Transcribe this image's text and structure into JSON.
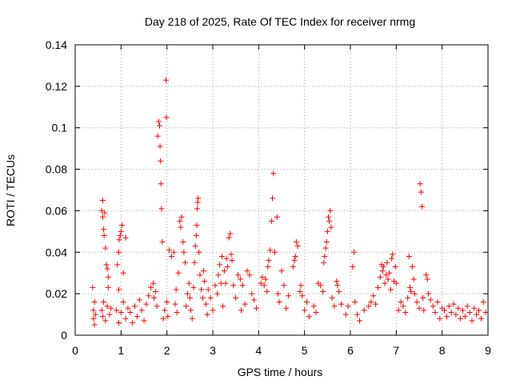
{
  "chart_data": {
    "type": "scatter",
    "title": "Day 218 of 2025, Rate Of TEC Index for receiver nrmg",
    "xlabel": "GPS time / hours",
    "ylabel": "ROTI / TECUs",
    "xlim": [
      0,
      9
    ],
    "ylim": [
      0,
      0.14
    ],
    "xticks": [
      0,
      1,
      2,
      3,
      4,
      5,
      6,
      7,
      8,
      9
    ],
    "xtick_labels": [
      "0",
      "1",
      "2",
      "3",
      "4",
      "5",
      "6",
      "7",
      "8",
      "9"
    ],
    "yticks": [
      0,
      0.02,
      0.04,
      0.06,
      0.08,
      0.1,
      0.12,
      0.14
    ],
    "ytick_labels": [
      "0",
      "0.02",
      "0.04",
      "0.06",
      "0.08",
      "0.1",
      "0.12",
      "0.14"
    ],
    "grid": true,
    "marker": "+",
    "color": "#ff0000",
    "series": [
      {
        "name": "ROTI",
        "points": [
          [
            0.38,
            0.023
          ],
          [
            0.4,
            0.012
          ],
          [
            0.4,
            0.008
          ],
          [
            0.42,
            0.016
          ],
          [
            0.42,
            0.005
          ],
          [
            0.44,
            0.01
          ],
          [
            0.58,
            0.06
          ],
          [
            0.6,
            0.065
          ],
          [
            0.6,
            0.057
          ],
          [
            0.62,
            0.051
          ],
          [
            0.63,
            0.048
          ],
          [
            0.64,
            0.059
          ],
          [
            0.66,
            0.042
          ],
          [
            0.68,
            0.034
          ],
          [
            0.7,
            0.032
          ],
          [
            0.72,
            0.028
          ],
          [
            0.72,
            0.023
          ],
          [
            0.58,
            0.012
          ],
          [
            0.6,
            0.009
          ],
          [
            0.62,
            0.016
          ],
          [
            0.66,
            0.007
          ],
          [
            0.7,
            0.014
          ],
          [
            0.75,
            0.01
          ],
          [
            0.78,
            0.013
          ],
          [
            0.92,
            0.034
          ],
          [
            0.95,
            0.04
          ],
          [
            0.96,
            0.046
          ],
          [
            0.98,
            0.048
          ],
          [
            1.0,
            0.05
          ],
          [
            1.02,
            0.053
          ],
          [
            0.95,
            0.022
          ],
          [
            1.05,
            0.03
          ],
          [
            1.1,
            0.047
          ],
          [
            0.9,
            0.012
          ],
          [
            0.95,
            0.006
          ],
          [
            1.0,
            0.011
          ],
          [
            1.05,
            0.016
          ],
          [
            1.1,
            0.008
          ],
          [
            1.15,
            0.013
          ],
          [
            1.2,
            0.011
          ],
          [
            1.25,
            0.006
          ],
          [
            1.3,
            0.014
          ],
          [
            1.35,
            0.009
          ],
          [
            1.4,
            0.017
          ],
          [
            1.45,
            0.012
          ],
          [
            1.5,
            0.007
          ],
          [
            1.55,
            0.015
          ],
          [
            1.6,
            0.019
          ],
          [
            1.65,
            0.023
          ],
          [
            1.7,
            0.025
          ],
          [
            1.72,
            0.018
          ],
          [
            1.75,
            0.021
          ],
          [
            1.78,
            0.014
          ],
          [
            1.8,
            0.096
          ],
          [
            1.82,
            0.103
          ],
          [
            1.84,
            0.101
          ],
          [
            1.85,
            0.091
          ],
          [
            1.86,
            0.084
          ],
          [
            1.87,
            0.073
          ],
          [
            1.88,
            0.061
          ],
          [
            1.9,
            0.045
          ],
          [
            1.98,
            0.123
          ],
          [
            1.99,
            0.105
          ],
          [
            1.95,
            0.012
          ],
          [
            1.92,
            0.008
          ],
          [
            2.0,
            0.016
          ],
          [
            2.02,
            0.009
          ],
          [
            2.05,
            0.041
          ],
          [
            2.1,
            0.038
          ],
          [
            2.15,
            0.04
          ],
          [
            2.18,
            0.015
          ],
          [
            2.2,
            0.022
          ],
          [
            2.22,
            0.011
          ],
          [
            2.25,
            0.03
          ],
          [
            2.28,
            0.055
          ],
          [
            2.3,
            0.052
          ],
          [
            2.32,
            0.057
          ],
          [
            2.35,
            0.045
          ],
          [
            2.37,
            0.04
          ],
          [
            2.4,
            0.035
          ],
          [
            2.42,
            0.014
          ],
          [
            2.45,
            0.02
          ],
          [
            2.48,
            0.025
          ],
          [
            2.5,
            0.018
          ],
          [
            2.52,
            0.012
          ],
          [
            2.55,
            0.008
          ],
          [
            2.58,
            0.023
          ],
          [
            2.6,
            0.035
          ],
          [
            2.62,
            0.043
          ],
          [
            2.64,
            0.048
          ],
          [
            2.65,
            0.053
          ],
          [
            2.66,
            0.061
          ],
          [
            2.67,
            0.064
          ],
          [
            2.68,
            0.066
          ],
          [
            2.7,
            0.04
          ],
          [
            2.72,
            0.029
          ],
          [
            2.75,
            0.022
          ],
          [
            2.78,
            0.018
          ],
          [
            2.8,
            0.031
          ],
          [
            2.82,
            0.026
          ],
          [
            2.85,
            0.015
          ],
          [
            2.88,
            0.01
          ],
          [
            2.9,
            0.022
          ],
          [
            2.95,
            0.018
          ],
          [
            3.0,
            0.012
          ],
          [
            3.05,
            0.024
          ],
          [
            3.1,
            0.02
          ],
          [
            3.12,
            0.029
          ],
          [
            3.15,
            0.034
          ],
          [
            3.18,
            0.025
          ],
          [
            3.2,
            0.038
          ],
          [
            3.22,
            0.014
          ],
          [
            3.25,
            0.031
          ],
          [
            3.28,
            0.025
          ],
          [
            3.3,
            0.037
          ],
          [
            3.32,
            0.033
          ],
          [
            3.35,
            0.047
          ],
          [
            3.38,
            0.049
          ],
          [
            3.4,
            0.039
          ],
          [
            3.42,
            0.036
          ],
          [
            3.45,
            0.024
          ],
          [
            3.5,
            0.018
          ],
          [
            3.55,
            0.029
          ],
          [
            3.6,
            0.027
          ],
          [
            3.62,
            0.012
          ],
          [
            3.65,
            0.024
          ],
          [
            3.7,
            0.015
          ],
          [
            3.75,
            0.031
          ],
          [
            3.8,
            0.029
          ],
          [
            3.85,
            0.02
          ],
          [
            3.9,
            0.017
          ],
          [
            3.95,
            0.013
          ],
          [
            4.05,
            0.025
          ],
          [
            4.08,
            0.028
          ],
          [
            4.12,
            0.024
          ],
          [
            4.15,
            0.027
          ],
          [
            4.18,
            0.021
          ],
          [
            4.2,
            0.033
          ],
          [
            4.22,
            0.036
          ],
          [
            4.25,
            0.041
          ],
          [
            4.28,
            0.055
          ],
          [
            4.3,
            0.066
          ],
          [
            4.32,
            0.078
          ],
          [
            4.35,
            0.04
          ],
          [
            4.4,
            0.057
          ],
          [
            4.42,
            0.02
          ],
          [
            4.45,
            0.016
          ],
          [
            4.5,
            0.031
          ],
          [
            4.55,
            0.024
          ],
          [
            4.6,
            0.013
          ],
          [
            4.65,
            0.019
          ],
          [
            4.75,
            0.033
          ],
          [
            4.78,
            0.036
          ],
          [
            4.8,
            0.038
          ],
          [
            4.82,
            0.045
          ],
          [
            4.85,
            0.043
          ],
          [
            4.9,
            0.021
          ],
          [
            4.92,
            0.024
          ],
          [
            4.95,
            0.019
          ],
          [
            5.0,
            0.012
          ],
          [
            5.05,
            0.016
          ],
          [
            5.1,
            0.009
          ],
          [
            5.2,
            0.014
          ],
          [
            5.25,
            0.011
          ],
          [
            5.3,
            0.025
          ],
          [
            5.35,
            0.024
          ],
          [
            5.4,
            0.021
          ],
          [
            5.42,
            0.035
          ],
          [
            5.44,
            0.038
          ],
          [
            5.46,
            0.042
          ],
          [
            5.48,
            0.045
          ],
          [
            5.5,
            0.05
          ],
          [
            5.52,
            0.057
          ],
          [
            5.54,
            0.055
          ],
          [
            5.56,
            0.06
          ],
          [
            5.58,
            0.052
          ],
          [
            5.6,
            0.018
          ],
          [
            5.65,
            0.014
          ],
          [
            5.7,
            0.026
          ],
          [
            5.72,
            0.024
          ],
          [
            5.75,
            0.021
          ],
          [
            5.8,
            0.015
          ],
          [
            5.9,
            0.01
          ],
          [
            5.95,
            0.014
          ],
          [
            6.05,
            0.033
          ],
          [
            6.08,
            0.04
          ],
          [
            6.1,
            0.016
          ],
          [
            6.15,
            0.01
          ],
          [
            6.2,
            0.007
          ],
          [
            6.3,
            0.012
          ],
          [
            6.4,
            0.014
          ],
          [
            6.45,
            0.016
          ],
          [
            6.5,
            0.019
          ],
          [
            6.55,
            0.015
          ],
          [
            6.6,
            0.023
          ],
          [
            6.65,
            0.028
          ],
          [
            6.68,
            0.034
          ],
          [
            6.7,
            0.031
          ],
          [
            6.72,
            0.033
          ],
          [
            6.75,
            0.025
          ],
          [
            6.78,
            0.029
          ],
          [
            6.8,
            0.035
          ],
          [
            6.82,
            0.027
          ],
          [
            6.85,
            0.03
          ],
          [
            6.88,
            0.022
          ],
          [
            6.9,
            0.037
          ],
          [
            6.92,
            0.039
          ],
          [
            6.95,
            0.026
          ],
          [
            6.98,
            0.033
          ],
          [
            7.0,
            0.025
          ],
          [
            7.05,
            0.012
          ],
          [
            7.1,
            0.016
          ],
          [
            7.15,
            0.014
          ],
          [
            7.2,
            0.011
          ],
          [
            7.25,
            0.018
          ],
          [
            7.28,
            0.038
          ],
          [
            7.3,
            0.023
          ],
          [
            7.32,
            0.021
          ],
          [
            7.35,
            0.033
          ],
          [
            7.38,
            0.027
          ],
          [
            7.4,
            0.02
          ],
          [
            7.45,
            0.016
          ],
          [
            7.5,
            0.013
          ],
          [
            7.52,
            0.073
          ],
          [
            7.54,
            0.069
          ],
          [
            7.56,
            0.062
          ],
          [
            7.58,
            0.018
          ],
          [
            7.6,
            0.012
          ],
          [
            7.65,
            0.029
          ],
          [
            7.68,
            0.027
          ],
          [
            7.7,
            0.02
          ],
          [
            7.75,
            0.017
          ],
          [
            7.8,
            0.014
          ],
          [
            7.85,
            0.011
          ],
          [
            7.9,
            0.016
          ],
          [
            7.95,
            0.008
          ],
          [
            8.0,
            0.013
          ],
          [
            8.05,
            0.012
          ],
          [
            8.1,
            0.009
          ],
          [
            8.15,
            0.014
          ],
          [
            8.2,
            0.011
          ],
          [
            8.25,
            0.015
          ],
          [
            8.3,
            0.01
          ],
          [
            8.35,
            0.013
          ],
          [
            8.4,
            0.008
          ],
          [
            8.45,
            0.012
          ],
          [
            8.5,
            0.009
          ],
          [
            8.55,
            0.014
          ],
          [
            8.6,
            0.011
          ],
          [
            8.65,
            0.007
          ],
          [
            8.7,
            0.013
          ],
          [
            8.75,
            0.01
          ],
          [
            8.8,
            0.012
          ],
          [
            8.85,
            0.008
          ],
          [
            8.9,
            0.016
          ],
          [
            8.95,
            0.011
          ]
        ]
      }
    ]
  }
}
